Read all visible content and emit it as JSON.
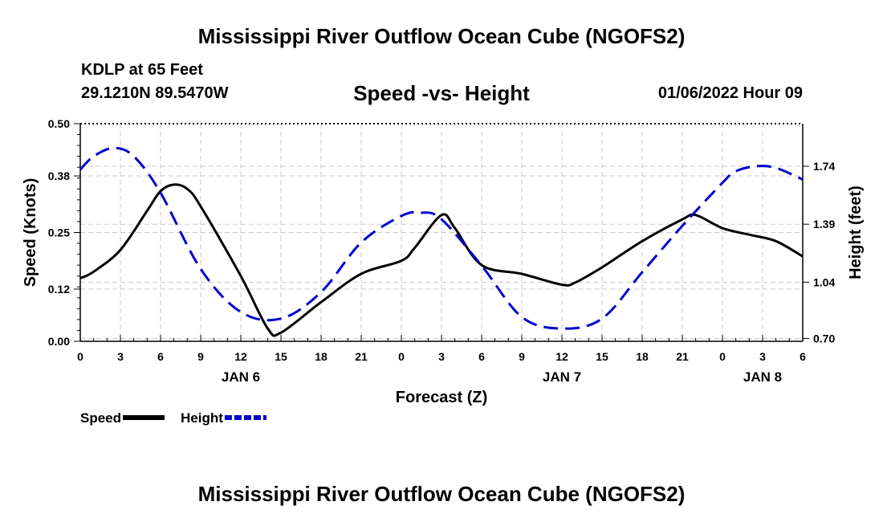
{
  "header": {
    "title": "Mississippi River Outflow Ocean Cube (NGOFS2)",
    "station": "KDLP at 65 Feet",
    "coords": "29.1210N  89.5470W",
    "subtitle": "Speed -vs- Height",
    "datetime": "01/06/2022 Hour 09"
  },
  "footer": {
    "title": "Mississippi River Outflow Ocean Cube (NGOFS2)"
  },
  "chart_data": {
    "type": "line",
    "title": "Speed -vs- Height",
    "xlabel": "Forecast (Z)",
    "ylabel": "Speed (Knots)",
    "y2label": "Height (feet)",
    "x_range": [
      0,
      54
    ],
    "x_unit": "forecast hours from JAN 6 00Z",
    "x_ticks": [
      0,
      3,
      6,
      9,
      12,
      15,
      18,
      21,
      24,
      27,
      30,
      33,
      36,
      39,
      42,
      45,
      48,
      51,
      54
    ],
    "x_tick_labels": [
      "0",
      "3",
      "6",
      "9",
      "12",
      "15",
      "18",
      "21",
      "0",
      "3",
      "6",
      "9",
      "12",
      "15",
      "18",
      "21",
      "0",
      "3",
      "6"
    ],
    "day_labels": [
      {
        "hour": 12,
        "label": "JAN 6"
      },
      {
        "hour": 36,
        "label": "JAN 7"
      },
      {
        "hour": 51,
        "label": "JAN 8"
      }
    ],
    "ylim": [
      0,
      0.5
    ],
    "y_ticks": [
      0.0,
      0.12,
      0.25,
      0.38,
      0.5
    ],
    "y_tick_labels": [
      "0.00",
      "0.12",
      "0.25",
      "0.38",
      "0.50"
    ],
    "y2lim": [
      0.683,
      1.997
    ],
    "y2_ticks": [
      0.7,
      1.04,
      1.39,
      1.74
    ],
    "y2_tick_labels": [
      "0.70",
      "1.04",
      "1.39",
      "1.74"
    ],
    "grid": true,
    "legend_position": "bottom-left",
    "series": [
      {
        "name": "Speed",
        "axis": "left",
        "color": "#000000",
        "style": "solid",
        "x": [
          0,
          1,
          3,
          5,
          6,
          7,
          8,
          9,
          12,
          14,
          15,
          18,
          21,
          24,
          25,
          27,
          28,
          30,
          33,
          36,
          37,
          39,
          42,
          45,
          46,
          48,
          50,
          52,
          54
        ],
        "values": [
          0.145,
          0.16,
          0.21,
          0.3,
          0.345,
          0.36,
          0.35,
          0.31,
          0.15,
          0.03,
          0.02,
          0.09,
          0.155,
          0.185,
          0.215,
          0.29,
          0.26,
          0.175,
          0.155,
          0.13,
          0.135,
          0.17,
          0.23,
          0.28,
          0.29,
          0.26,
          0.245,
          0.23,
          0.195
        ]
      },
      {
        "name": "Height",
        "axis": "right",
        "color": "#0000cc",
        "style": "dashed",
        "x": [
          0,
          1,
          2.5,
          4,
          6,
          9,
          12,
          15,
          18,
          21,
          24,
          25.5,
          27,
          30,
          33,
          36,
          39,
          42,
          45,
          48,
          49,
          50.5,
          52,
          54
        ],
        "values": [
          1.72,
          1.8,
          1.85,
          1.8,
          1.58,
          1.12,
          0.86,
          0.82,
          0.98,
          1.28,
          1.44,
          1.46,
          1.42,
          1.14,
          0.83,
          0.76,
          0.82,
          1.1,
          1.38,
          1.64,
          1.71,
          1.74,
          1.73,
          1.66
        ]
      }
    ]
  }
}
